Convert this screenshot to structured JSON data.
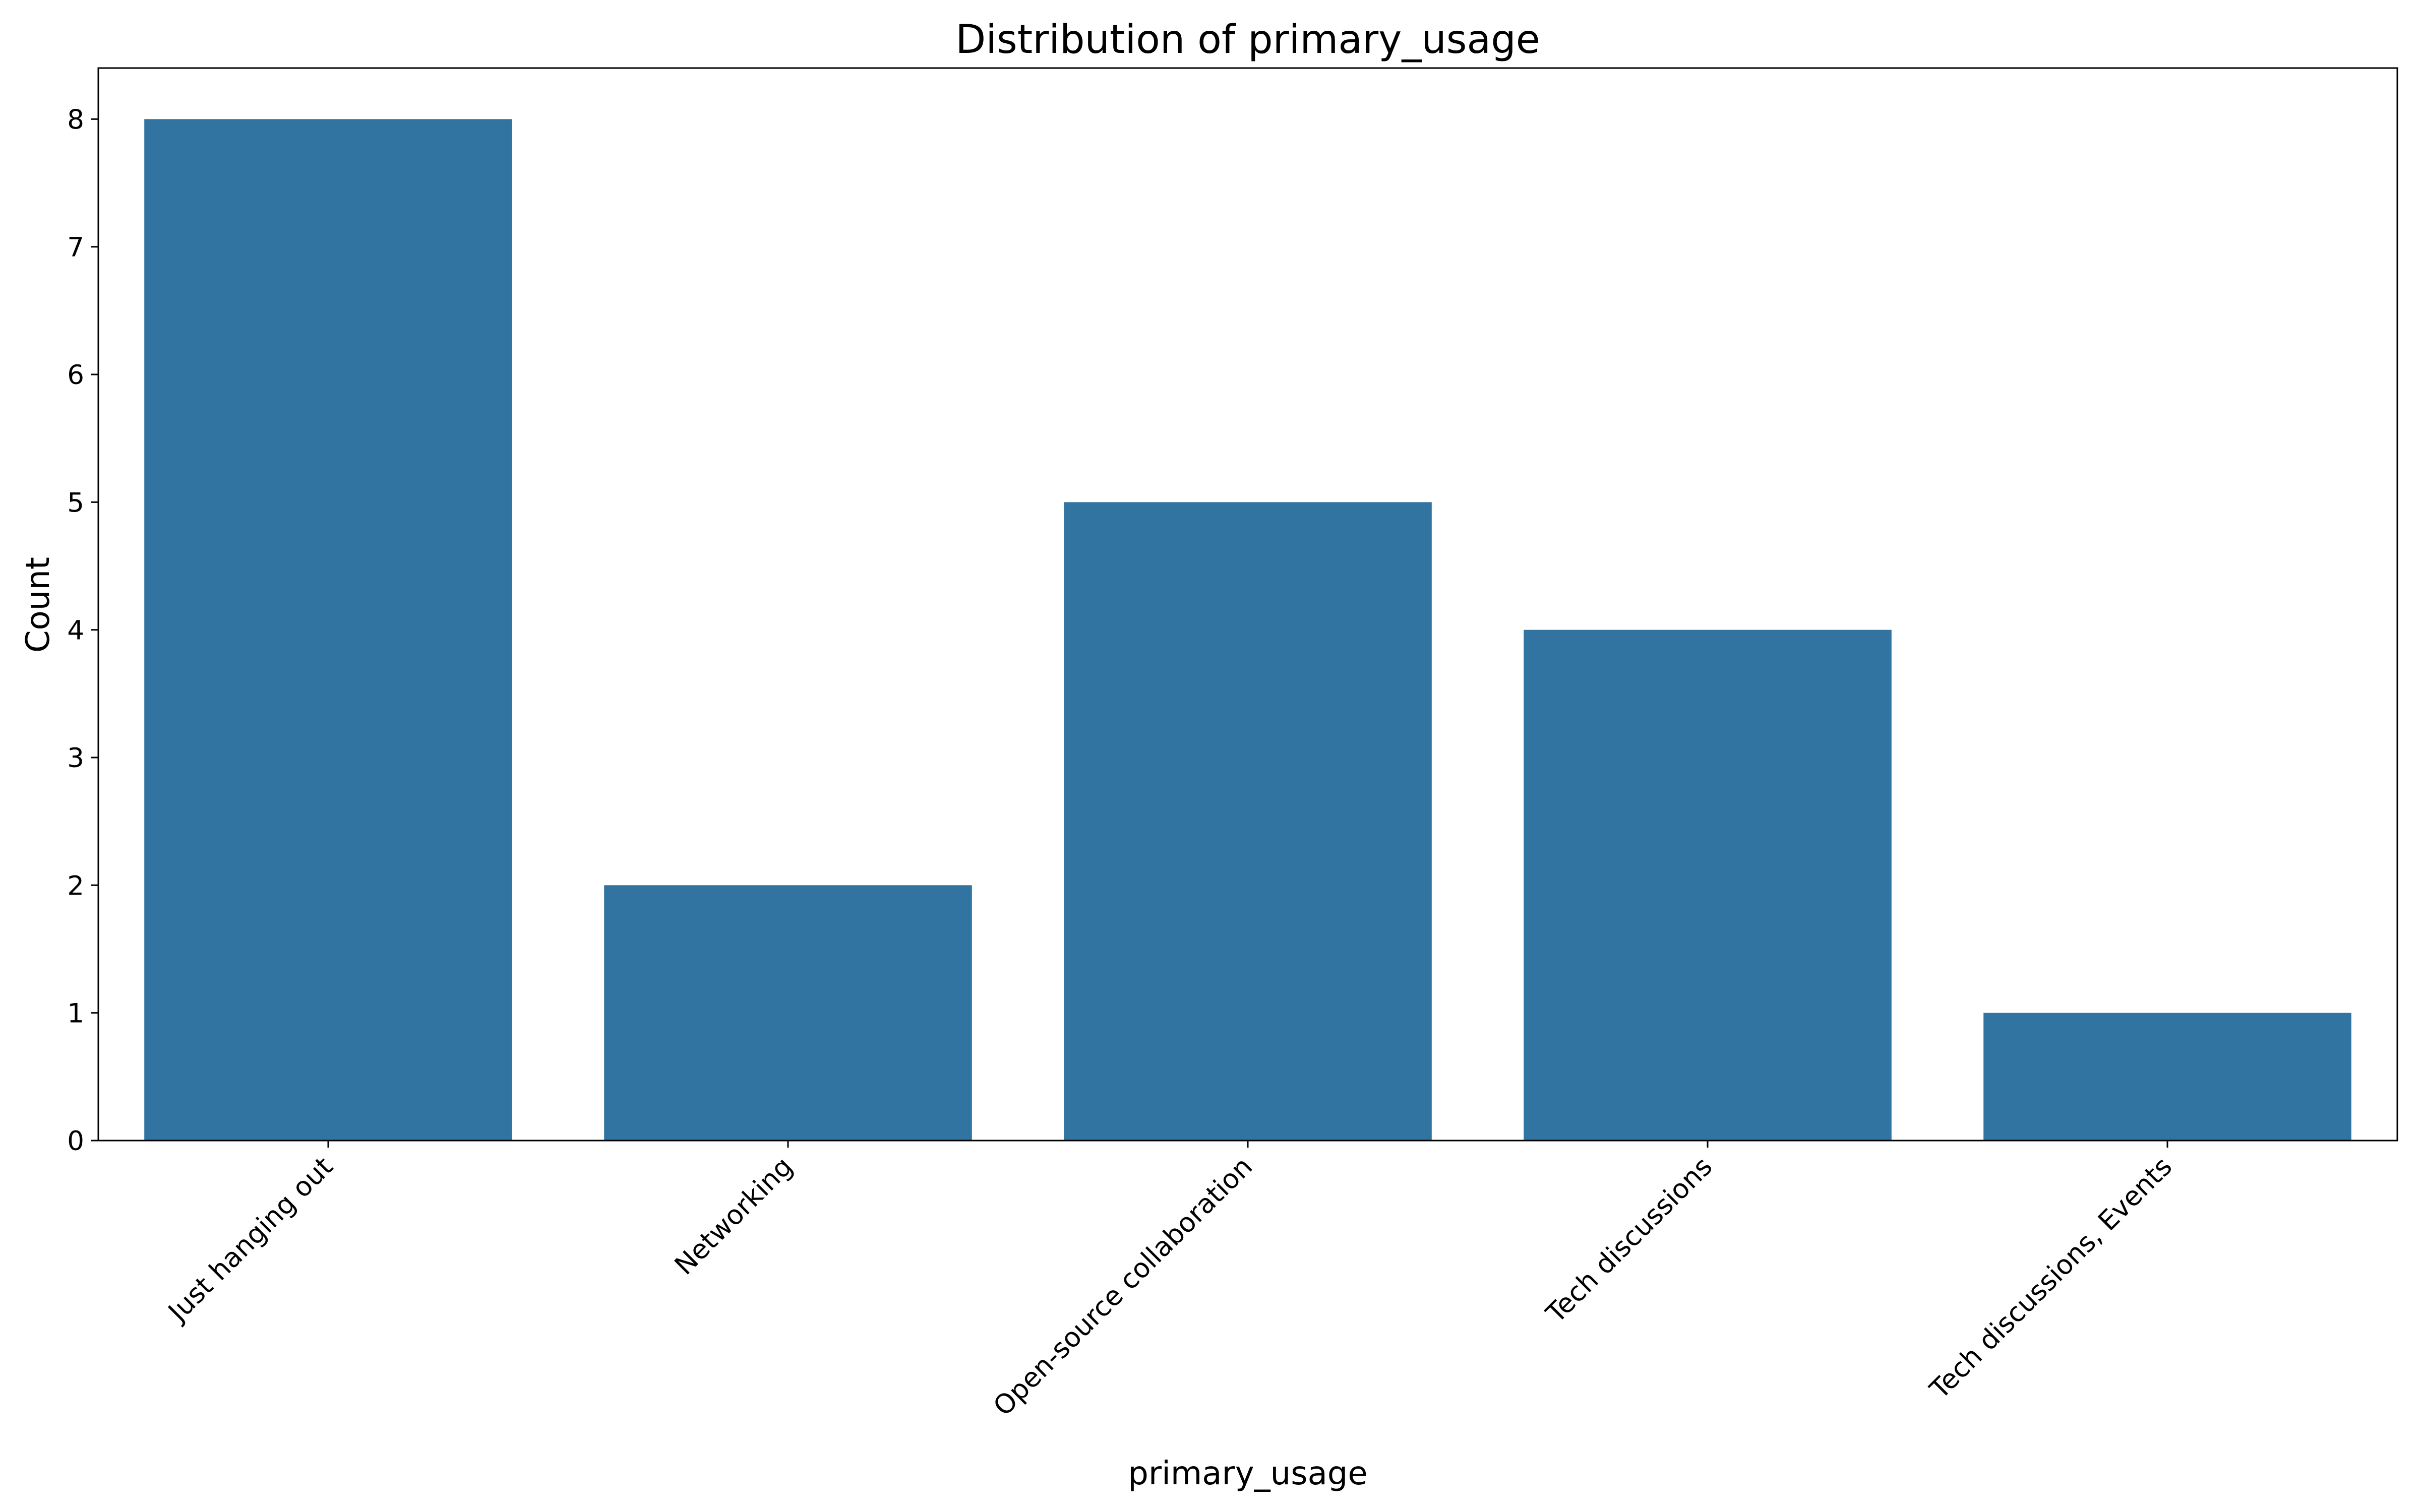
{
  "chart_data": {
    "type": "bar",
    "title": "Distribution of primary_usage",
    "xlabel": "primary_usage",
    "ylabel": "Count",
    "categories": [
      "Just hanging out",
      "Networking",
      "Open-source collaboration",
      "Tech discussions",
      "Tech discussions, Events"
    ],
    "values": [
      8,
      2,
      5,
      4,
      1
    ],
    "ylim": [
      0,
      8.4
    ],
    "yticks": [
      0,
      1,
      2,
      3,
      4,
      5,
      6,
      7,
      8
    ],
    "bar_color": "#3274a1",
    "grid": false,
    "legend": "none"
  }
}
